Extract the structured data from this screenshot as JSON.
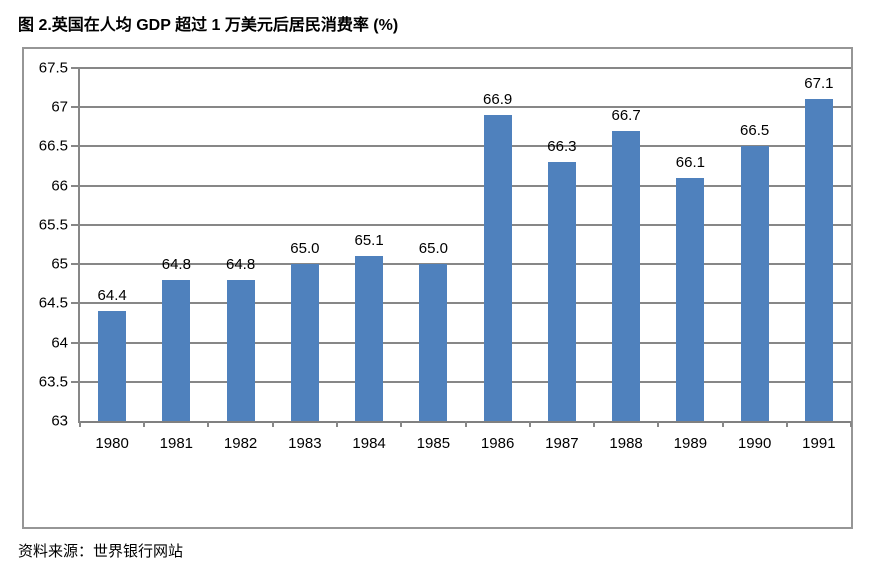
{
  "title": "图 2.英国在人均 GDP 超过 1 万美元后居民消费率 (%)",
  "source": "资料来源：世界银行网站",
  "chart_data": {
    "type": "bar",
    "title": "图 2.英国在人均 GDP 超过 1 万美元后居民消费率 (%)",
    "categories": [
      "1980",
      "1981",
      "1982",
      "1983",
      "1984",
      "1985",
      "1986",
      "1987",
      "1988",
      "1989",
      "1990",
      "1991"
    ],
    "values": [
      64.4,
      64.8,
      64.8,
      65.0,
      65.1,
      65.0,
      66.9,
      66.3,
      66.7,
      66.1,
      66.5,
      67.1
    ],
    "data_labels": [
      "64.4",
      "64.8",
      "64.8",
      "65.0",
      "65.1",
      "65.0",
      "66.9",
      "66.3",
      "66.7",
      "66.1",
      "66.5",
      "67.1"
    ],
    "xlabel": "",
    "ylabel": "",
    "ylim": [
      63,
      67.5
    ],
    "ytick_step": 0.5,
    "yticks": [
      "67.5",
      "67",
      "66.5",
      "66",
      "65.5",
      "65",
      "64.5",
      "64",
      "63.5",
      "63"
    ],
    "grid": true,
    "legend_position": "none",
    "bar_color": "#4F81BD",
    "gridline_color": "#878787",
    "frame_color": "#969696",
    "text_color": "#000000",
    "source_note": "资料来源：世界银行网站"
  }
}
